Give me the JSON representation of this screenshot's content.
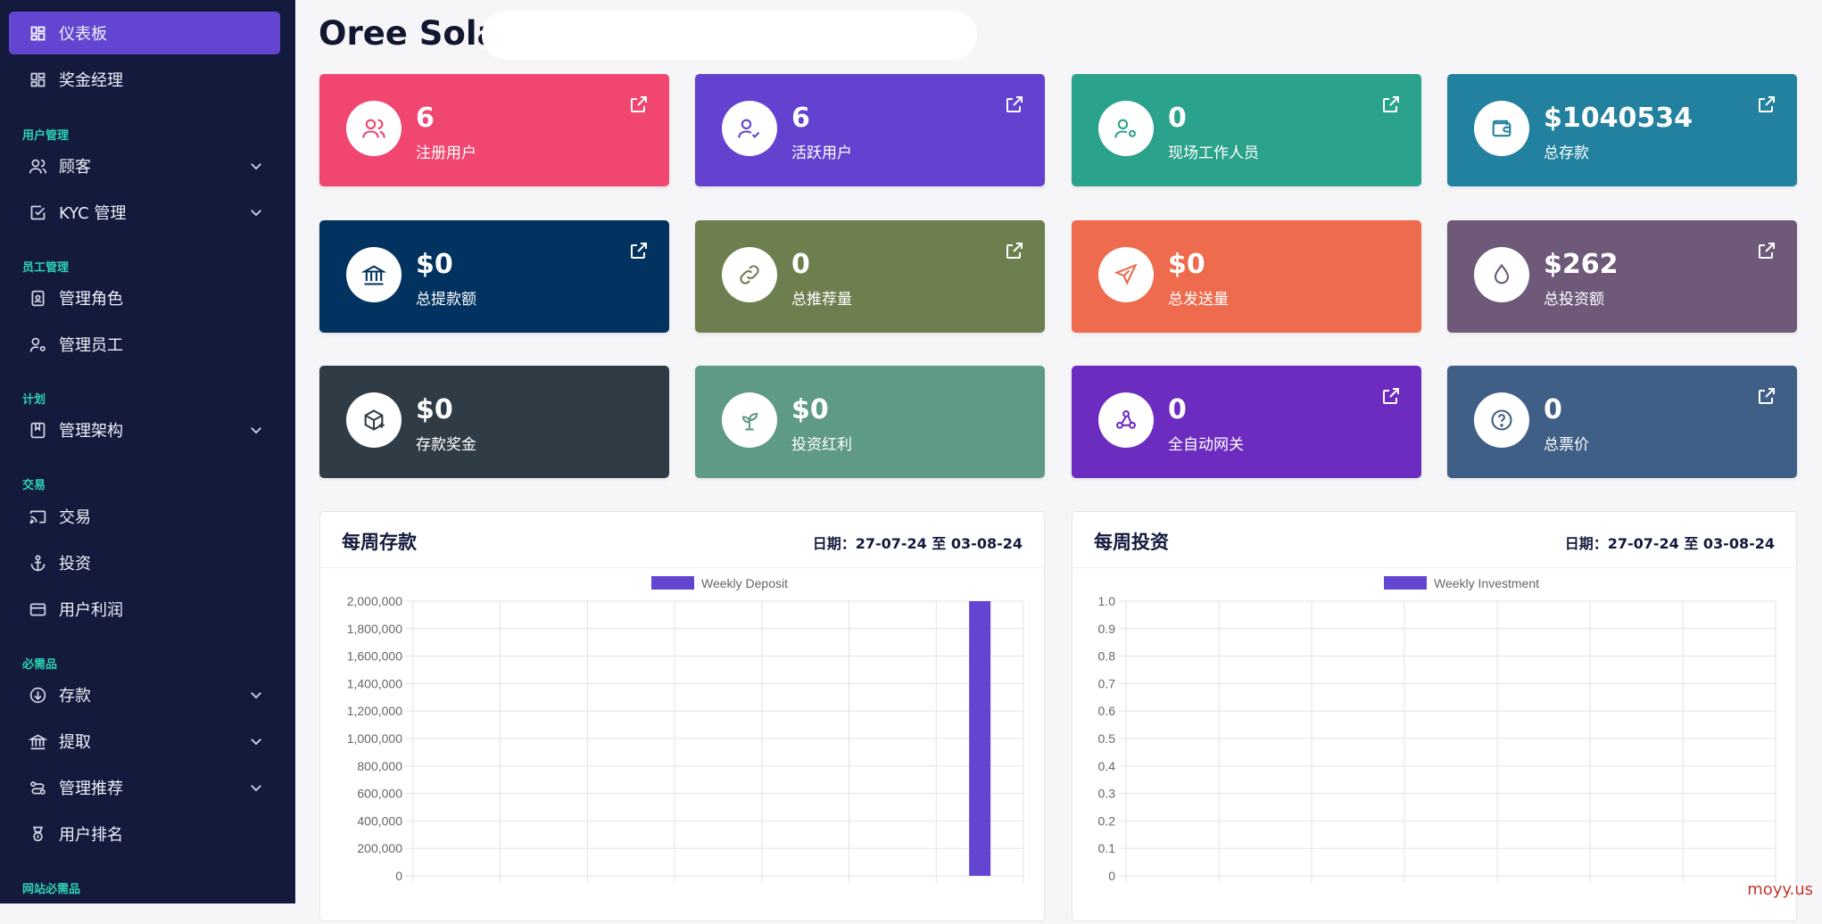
{
  "sidebar": {
    "items": [
      {
        "label": "仪表板",
        "icon": "dashboard-icon",
        "active": true
      },
      {
        "label": "奖金经理",
        "icon": "dashboard-icon"
      },
      {
        "label": "顾客",
        "icon": "users-icon"
      },
      {
        "label": "KYC 管理",
        "icon": "checkbox-icon"
      },
      {
        "label": "管理角色",
        "icon": "id-badge-icon"
      },
      {
        "label": "管理员工",
        "icon": "user-gear-icon"
      },
      {
        "label": "管理架构",
        "icon": "bookmark-icon"
      },
      {
        "label": "交易",
        "icon": "cast-icon"
      },
      {
        "label": "投资",
        "icon": "anchor-icon"
      },
      {
        "label": "用户利润",
        "icon": "credit-card-icon"
      },
      {
        "label": "存款",
        "icon": "arrow-circle-down-icon"
      },
      {
        "label": "提取",
        "icon": "bank-icon"
      },
      {
        "label": "管理推荐",
        "icon": "route-icon"
      },
      {
        "label": "用户排名",
        "icon": "medal-icon"
      }
    ],
    "sections": [
      "用户管理",
      "员工管理",
      "计划",
      "交易",
      "必需品",
      "网站必需品"
    ]
  },
  "header": {
    "title": "Oree Solar"
  },
  "cards": [
    {
      "value": "6",
      "label": "注册用户",
      "color": "#f0466f",
      "icon": "users-icon"
    },
    {
      "value": "6",
      "label": "活跃用户",
      "color": "#6541d0",
      "icon": "user-check-icon"
    },
    {
      "value": "0",
      "label": "现场工作人员",
      "color": "#2ba28b",
      "icon": "user-cog-icon"
    },
    {
      "value": "$1040534",
      "label": "总存款",
      "color": "#22819f",
      "icon": "wallet-icon"
    },
    {
      "value": "$0",
      "label": "总提款额",
      "color": "#02325f",
      "icon": "bank-icon"
    },
    {
      "value": "0",
      "label": "总推荐量",
      "color": "#6e7f4f",
      "icon": "link-icon"
    },
    {
      "value": "$0",
      "label": "总发送量",
      "color": "#ee6b4e",
      "icon": "send-icon"
    },
    {
      "value": "$262",
      "label": "总投资额",
      "color": "#6e5979",
      "icon": "droplet-icon"
    },
    {
      "value": "$0",
      "label": "存款奖金",
      "color": "#2f3c46",
      "icon": "box-plus-icon"
    },
    {
      "value": "$0",
      "label": "投资红利",
      "color": "#5e9a86",
      "icon": "sprout-icon"
    },
    {
      "value": "0",
      "label": "全自动网关",
      "color": "#6c2cbf",
      "icon": "webhook-icon"
    },
    {
      "value": "0",
      "label": "总票价",
      "color": "#3f5f86",
      "icon": "help-circle-icon"
    }
  ],
  "panels": [
    {
      "title": "每周存款",
      "date": "日期：27-07-24 至 03-08-24"
    },
    {
      "title": "每周投资",
      "date": "日期：27-07-24 至 03-08-24"
    }
  ],
  "chart_data": [
    {
      "type": "bar",
      "series": [
        {
          "name": "Weekly Deposit",
          "values": [
            0,
            0,
            0,
            0,
            0,
            0,
            2000000
          ]
        }
      ],
      "ylim": [
        0,
        2000000
      ],
      "yticks": [
        "2,000,000",
        "1,800,000",
        "1,600,000",
        "1,400,000",
        "1,200,000",
        "1,000,000",
        "800,000",
        "600,000",
        "400,000",
        "200,000",
        "0"
      ],
      "color": "#6345d2",
      "grid": true,
      "legend": "top"
    },
    {
      "type": "bar",
      "series": [
        {
          "name": "Weekly Investment",
          "values": [
            0,
            0,
            0,
            0,
            0,
            0,
            0
          ]
        }
      ],
      "ylim": [
        0,
        1
      ],
      "yticks": [
        "1.0",
        "0.9",
        "0.8",
        "0.7",
        "0.6",
        "0.5",
        "0.4",
        "0.3",
        "0.2",
        "0.1",
        "0"
      ],
      "color": "#6345d2",
      "grid": true,
      "legend": "top"
    }
  ],
  "watermark": "moyy.us"
}
